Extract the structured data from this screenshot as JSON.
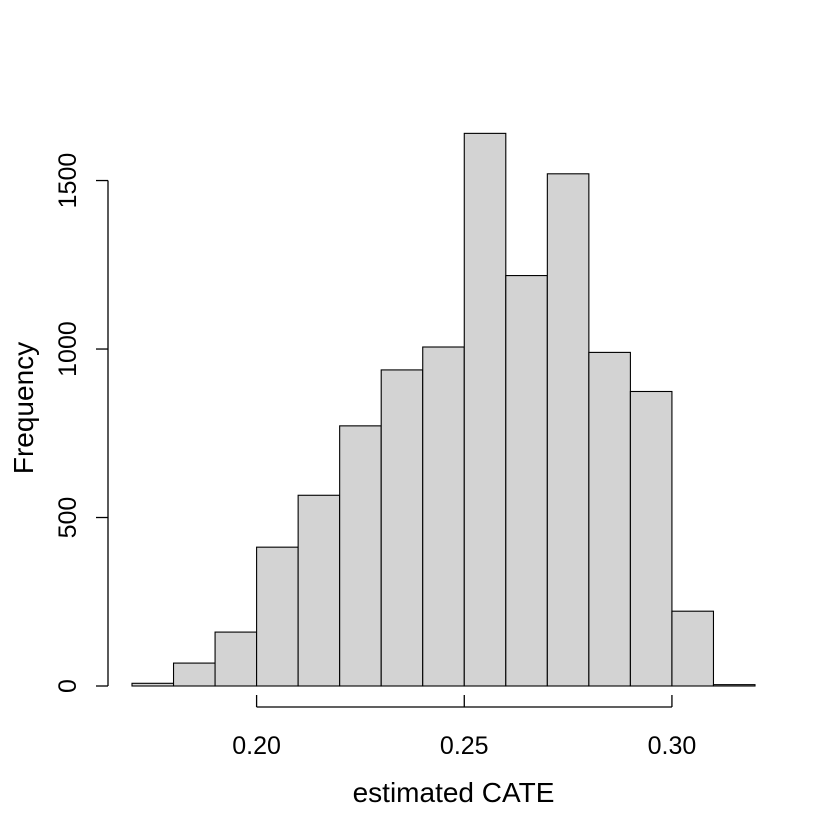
{
  "chart_data": {
    "type": "bar",
    "title": "",
    "xlabel": "estimated CATE",
    "ylabel": "Frequency",
    "bin_edges": [
      0.17,
      0.18,
      0.19,
      0.2,
      0.21,
      0.22,
      0.23,
      0.24,
      0.25,
      0.26,
      0.27,
      0.28,
      0.29,
      0.3,
      0.31,
      0.32
    ],
    "values": [
      8,
      68,
      160,
      412,
      566,
      772,
      938,
      1006,
      1640,
      1218,
      1520,
      990,
      874,
      222,
      4
    ],
    "xlim": [
      0.17,
      0.32
    ],
    "ylim": [
      0,
      1650
    ],
    "x_axis_range": [
      0.2,
      0.3
    ],
    "y_axis_range": [
      0,
      1500
    ],
    "xticks": [
      "0.20",
      "0.25",
      "0.30"
    ],
    "yticks": [
      "0",
      "500",
      "1000",
      "1500"
    ],
    "grid": false,
    "bar_color": "#d3d3d3",
    "edge_color": "#000000"
  }
}
